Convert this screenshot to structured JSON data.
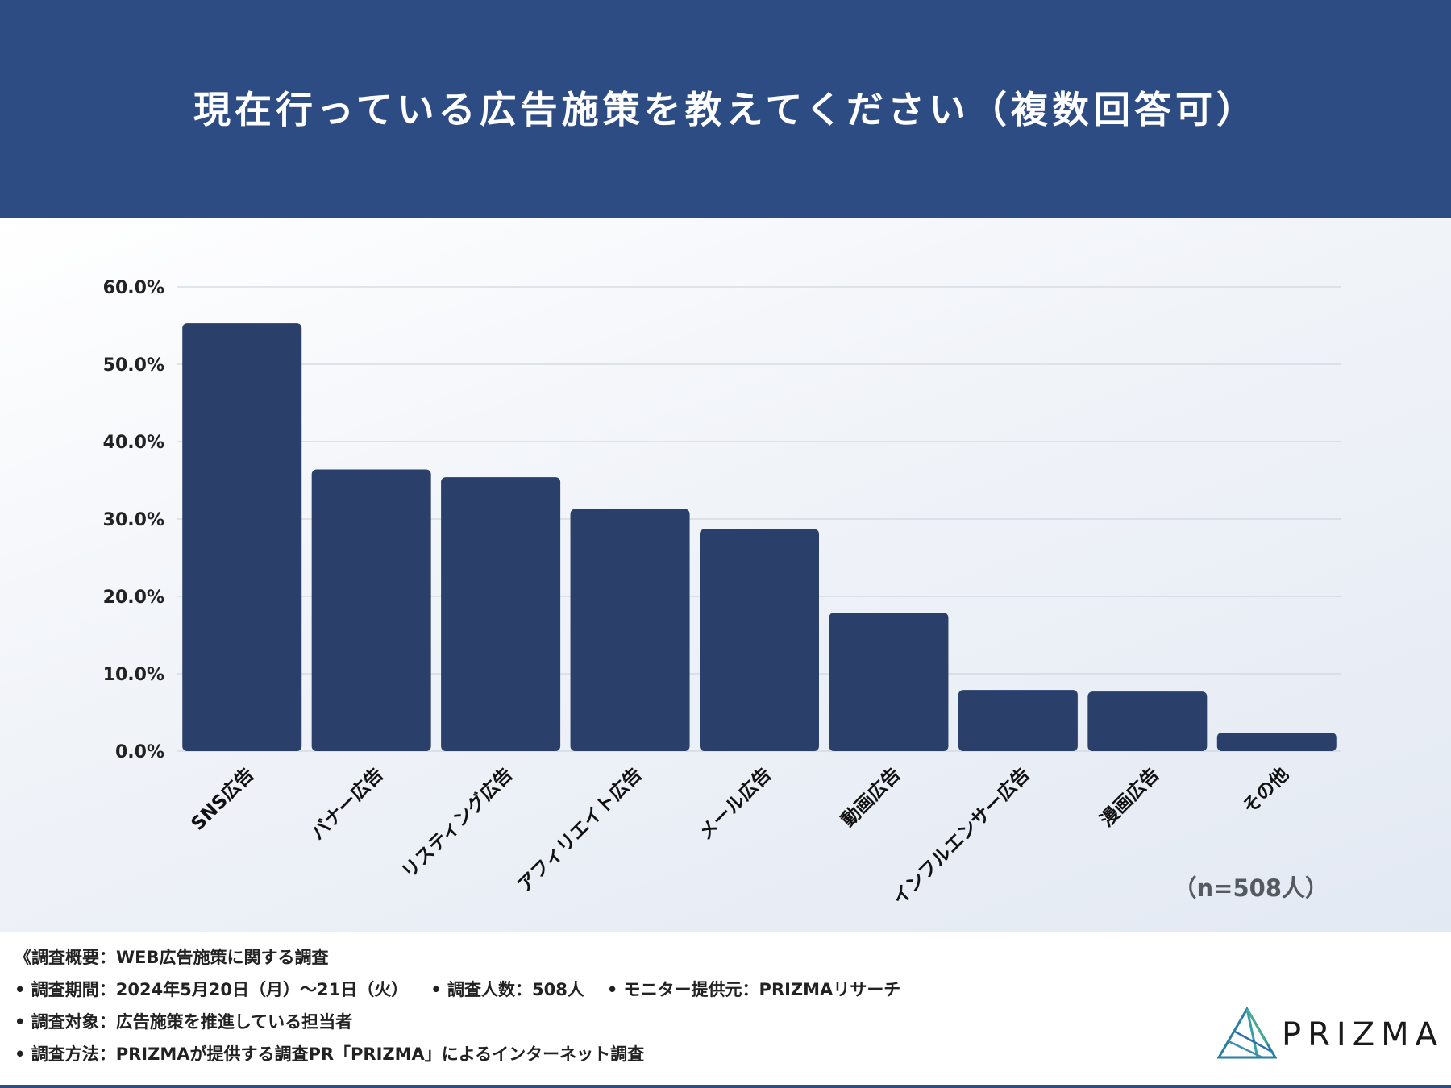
{
  "title": "現在行っている広告施策を教えてください（複数回答可）",
  "sample_note": "（n=508人）",
  "chart_data": {
    "type": "bar",
    "categories": [
      "SNS広告",
      "バナー広告",
      "リスティング広告",
      "アフィリエイト広告",
      "メール広告",
      "動画広告",
      "インフルエンサー広告",
      "漫画広告",
      "その他"
    ],
    "values": [
      55.3,
      36.4,
      35.4,
      31.3,
      28.7,
      17.9,
      7.9,
      7.7,
      2.4
    ],
    "ylim": [
      0,
      60
    ],
    "yticks": [
      "0.0%",
      "10.0%",
      "20.0%",
      "30.0%",
      "40.0%",
      "50.0%",
      "60.0%"
    ],
    "grid": true,
    "bar_color": "#2a3f6a"
  },
  "footer": {
    "line1": "《調査概要：WEB広告施策に関する調査",
    "line2_a": "• 調査期間：2024年5月20日（月）〜21日（火）",
    "line2_b": "• 調査人数：508人",
    "line2_c": "• モニター提供元：PRIZMAリサーチ",
    "line3": "• 調査対象：広告施策を推進している担当者",
    "line4": "• 調査方法：PRIZMAが提供する調査PR「PRIZMA」によるインターネット調査"
  },
  "logo": {
    "text": "PRIZMA",
    "icon": "prism-logo-icon"
  }
}
